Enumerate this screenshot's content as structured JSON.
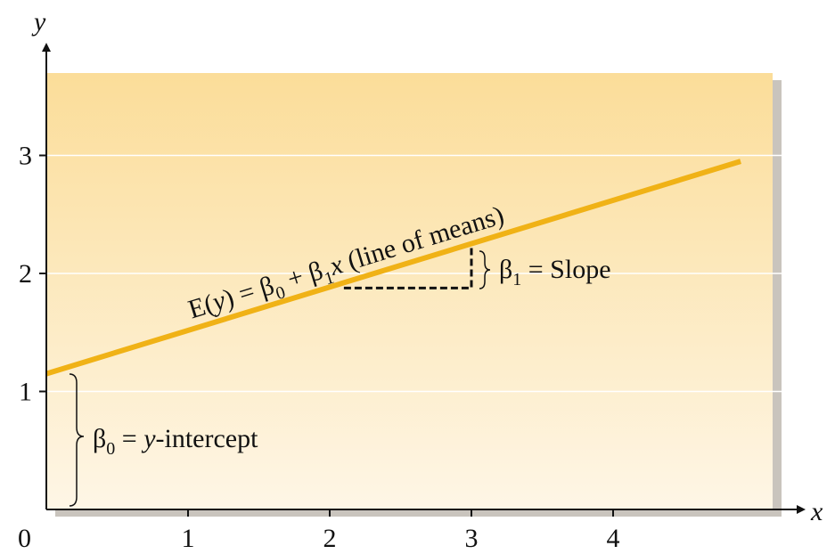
{
  "chart_data": {
    "type": "line",
    "xlabel": "x",
    "ylabel": "y",
    "xlim": [
      0,
      5.2
    ],
    "ylim": [
      0,
      3.7
    ],
    "x_ticks": [
      "1",
      "2",
      "3",
      "4"
    ],
    "y_ticks": [
      "1",
      "2",
      "3"
    ],
    "origin_label": "0",
    "grid": true,
    "series": [
      {
        "x": [
          0,
          4.9
        ],
        "y": [
          1.15,
          2.95
        ],
        "color": "#f0b216"
      }
    ],
    "slope_marker": {
      "x0": 2.1,
      "x1": 3.0
    },
    "annotations": {
      "line_label": {
        "prefix": "E(",
        "y_var": "y",
        "eq": ") = β",
        "b0_sub": "0",
        "plus": " + β",
        "b1_sub": "1",
        "x_var": "x",
        "suffix": " (line of means)"
      },
      "slope_label": {
        "beta": "β",
        "sub": "1",
        "text": " = Slope"
      },
      "intercept_label": {
        "beta": "β",
        "sub": "0",
        "eq": " = ",
        "var": "y",
        "text": "-intercept"
      }
    },
    "colors": {
      "background_top": "#fbdd99",
      "background_bottom": "#fef6e6",
      "line": "#f0b216",
      "grid": "#ffffff"
    }
  }
}
